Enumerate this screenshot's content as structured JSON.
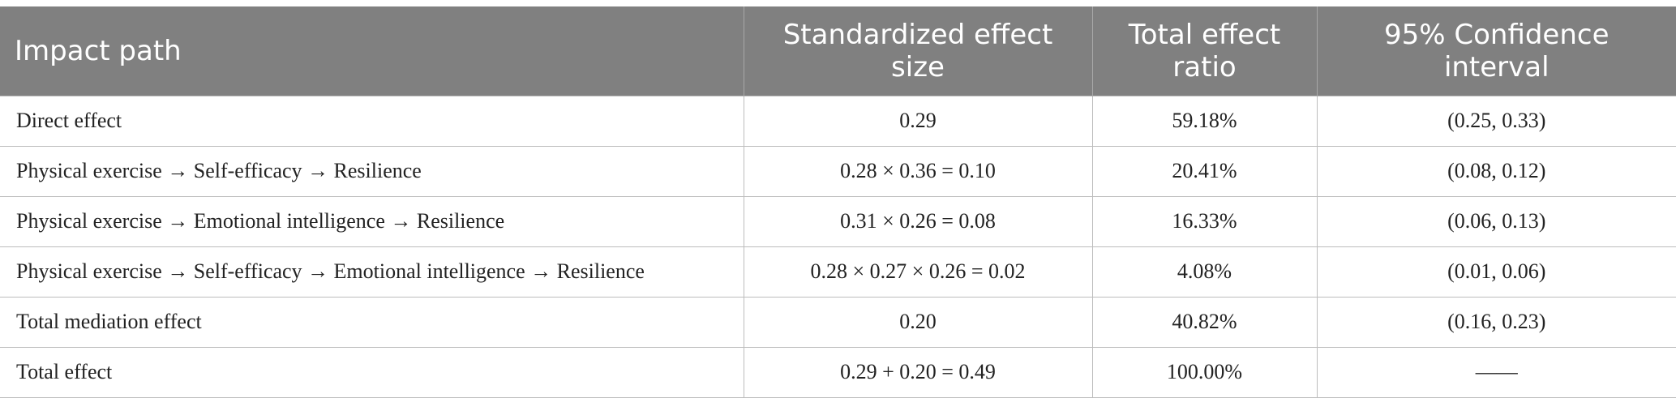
{
  "table": {
    "headers": [
      "Impact path",
      "Standardized effect size",
      "Total effect ratio",
      "95% Confidence interval"
    ],
    "rows": [
      [
        "Direct effect",
        "0.29",
        "59.18%",
        "(0.25, 0.33)"
      ],
      [
        "Physical exercise → Self-efficacy → Resilience",
        "0.28 × 0.36 = 0.10",
        "20.41%",
        "(0.08, 0.12)"
      ],
      [
        "Physical exercise → Emotional intelligence → Resilience",
        "0.31 × 0.26 = 0.08",
        "16.33%",
        "(0.06, 0.13)"
      ],
      [
        "Physical exercise → Self-efficacy → Emotional intelligence → Resilience",
        "0.28 × 0.27 × 0.26 = 0.02",
        "4.08%",
        "(0.01, 0.06)"
      ],
      [
        "Total mediation effect",
        "0.20",
        "40.82%",
        "(0.16, 0.23)"
      ],
      [
        "Total effect",
        "0.29 + 0.20 = 0.49",
        "100.00%",
        "——"
      ]
    ]
  },
  "colors": {
    "header_bg": "#808080",
    "header_text": "#ffffff",
    "grid": "#bdbdbd"
  }
}
